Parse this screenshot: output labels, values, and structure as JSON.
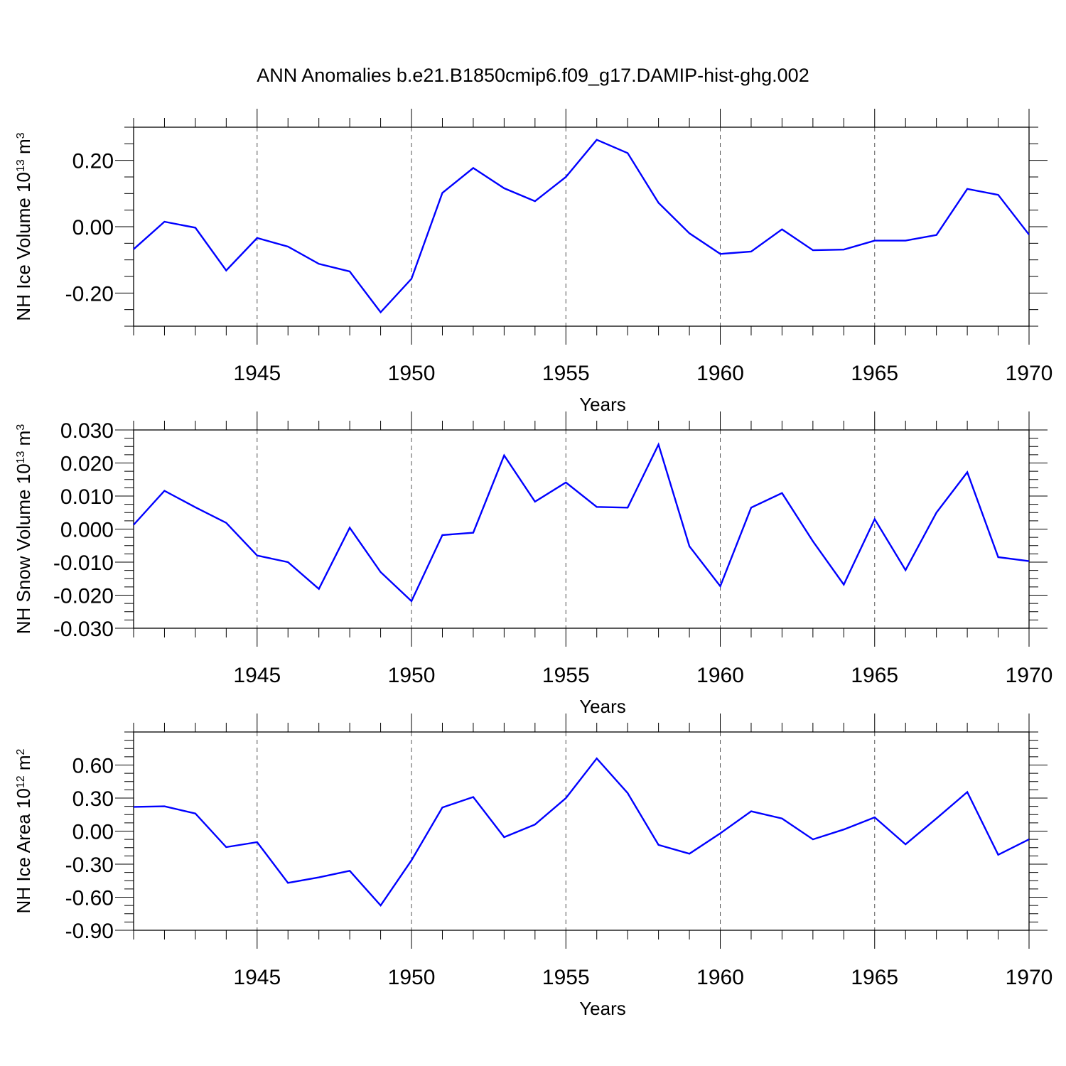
{
  "chart_data": [
    {
      "type": "line",
      "title": "ANN Anomalies b.e21.B1850cmip6.f09_g17.DAMIP-hist-ghg.002",
      "xlabel": "Years",
      "ylabel": "NH Ice Volume 10",
      "ylabel_sup": "13",
      "ylabel_unit": " m",
      "ylabel_unit_sup": "3",
      "xlim": [
        1941,
        1970
      ],
      "ylim": [
        -0.3,
        0.3
      ],
      "yticks": [
        -0.2,
        0.0,
        0.2
      ],
      "ytick_labels": [
        "-0.20",
        "0.00",
        "0.20"
      ],
      "xticks": [
        1945,
        1950,
        1955,
        1960,
        1965,
        1970
      ],
      "xtick_labels": [
        "1945",
        "1950",
        "1955",
        "1960",
        "1965",
        "1970"
      ],
      "grid": "vertical dashed at major x ticks",
      "x": [
        1941,
        1942,
        1943,
        1944,
        1945,
        1946,
        1947,
        1948,
        1949,
        1950,
        1951,
        1952,
        1953,
        1954,
        1955,
        1956,
        1957,
        1958,
        1959,
        1960,
        1961,
        1962,
        1963,
        1964,
        1965,
        1966,
        1967,
        1968,
        1969,
        1970
      ],
      "series": [
        {
          "values": [
            -0.068,
            0.015,
            -0.003,
            -0.132,
            -0.034,
            -0.06,
            -0.112,
            -0.135,
            -0.258,
            -0.157,
            0.102,
            0.177,
            0.116,
            0.077,
            0.15,
            0.262,
            0.222,
            0.072,
            -0.02,
            -0.082,
            -0.075,
            -0.008,
            -0.071,
            -0.069,
            -0.042,
            -0.042,
            -0.025,
            0.114,
            0.096,
            -0.024
          ],
          "color": "#0000ff"
        }
      ]
    },
    {
      "type": "line",
      "xlabel": "Years",
      "ylabel": "NH Snow Volume 10",
      "ylabel_sup": "13",
      "ylabel_unit": " m",
      "ylabel_unit_sup": "3",
      "xlim": [
        1941,
        1970
      ],
      "ylim": [
        -0.03,
        0.03
      ],
      "yticks": [
        -0.03,
        -0.02,
        -0.01,
        0.0,
        0.01,
        0.02,
        0.03
      ],
      "ytick_labels": [
        "-0.030",
        "-0.020",
        "-0.010",
        "0.000",
        "0.010",
        "0.020",
        "0.030"
      ],
      "xticks": [
        1945,
        1950,
        1955,
        1960,
        1965,
        1970
      ],
      "xtick_labels": [
        "1945",
        "1950",
        "1955",
        "1960",
        "1965",
        "1970"
      ],
      "grid": "vertical dashed at major x ticks",
      "x": [
        1941,
        1942,
        1943,
        1944,
        1945,
        1946,
        1947,
        1948,
        1949,
        1950,
        1951,
        1952,
        1953,
        1954,
        1955,
        1956,
        1957,
        1958,
        1959,
        1960,
        1961,
        1962,
        1963,
        1964,
        1965,
        1966,
        1967,
        1968,
        1969,
        1970
      ],
      "series": [
        {
          "values": [
            0.0013,
            0.0116,
            0.0066,
            0.0019,
            -0.008,
            -0.01,
            -0.0181,
            0.0004,
            -0.013,
            -0.0218,
            -0.0018,
            -0.0011,
            0.0223,
            0.0083,
            0.0141,
            0.0067,
            0.0065,
            0.0256,
            -0.0052,
            -0.0173,
            0.0065,
            0.0109,
            -0.0037,
            -0.0168,
            0.003,
            -0.0124,
            0.005,
            0.0172,
            -0.0085,
            -0.0097
          ],
          "color": "#0000ff"
        }
      ]
    },
    {
      "type": "line",
      "xlabel": "Years",
      "ylabel": "NH Ice Area 10",
      "ylabel_sup": "12",
      "ylabel_unit": " m",
      "ylabel_unit_sup": "2",
      "xlim": [
        1941,
        1970
      ],
      "ylim": [
        -0.9,
        0.9
      ],
      "yticks": [
        -0.9,
        -0.6,
        -0.3,
        0.0,
        0.3,
        0.6
      ],
      "ytick_labels": [
        "-0.90",
        "-0.60",
        "-0.30",
        "0.00",
        "0.30",
        "0.60"
      ],
      "xticks": [
        1945,
        1950,
        1955,
        1960,
        1965,
        1970
      ],
      "xtick_labels": [
        "1945",
        "1950",
        "1955",
        "1960",
        "1965",
        "1970"
      ],
      "grid": "vertical dashed at major x ticks",
      "x": [
        1941,
        1942,
        1943,
        1944,
        1945,
        1946,
        1947,
        1948,
        1949,
        1950,
        1951,
        1952,
        1953,
        1954,
        1955,
        1956,
        1957,
        1958,
        1959,
        1960,
        1961,
        1962,
        1963,
        1964,
        1965,
        1966,
        1967,
        1968,
        1969,
        1970
      ],
      "series": [
        {
          "values": [
            0.22,
            0.225,
            0.16,
            -0.145,
            -0.1,
            -0.47,
            -0.42,
            -0.36,
            -0.675,
            -0.265,
            0.215,
            0.31,
            -0.055,
            0.06,
            0.3,
            0.66,
            0.345,
            -0.125,
            -0.205,
            -0.02,
            0.18,
            0.115,
            -0.075,
            0.015,
            0.125,
            -0.12,
            0.115,
            0.355,
            -0.215,
            -0.075
          ],
          "color": "#0000ff"
        }
      ]
    }
  ]
}
